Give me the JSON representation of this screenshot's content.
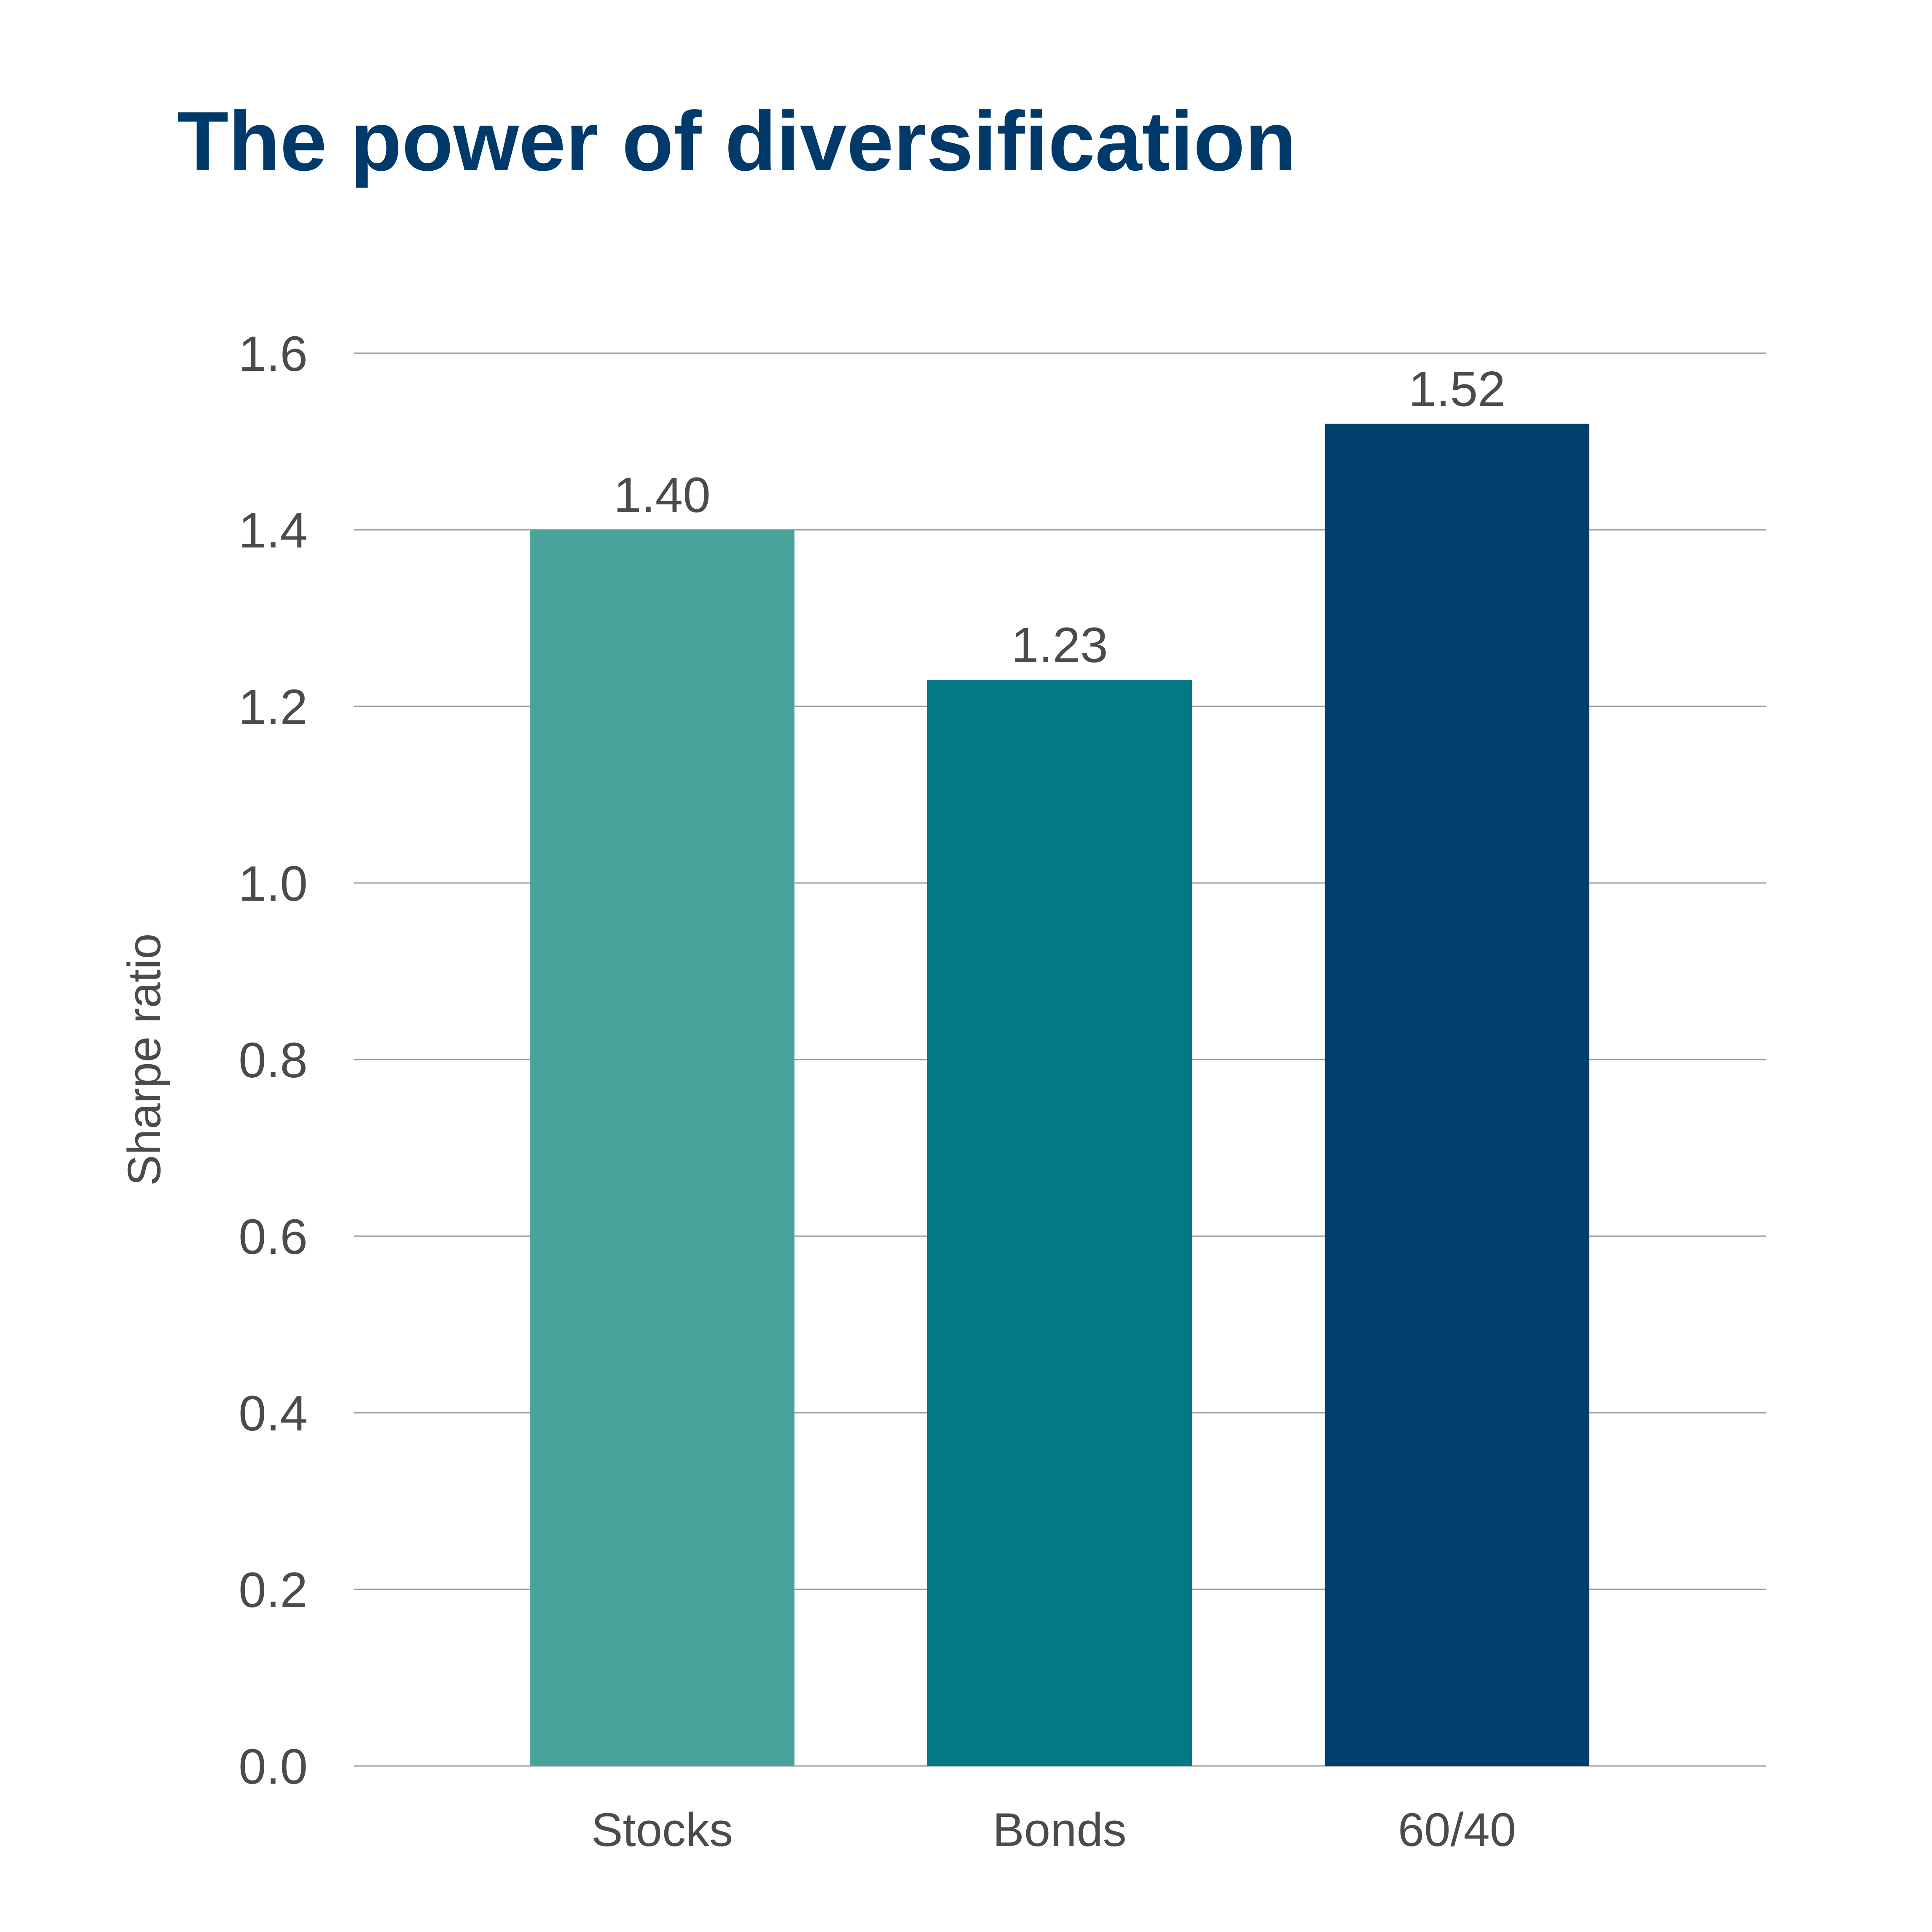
{
  "chart_data": {
    "type": "bar",
    "title": "The power of diversification",
    "xlabel": "",
    "ylabel": "Sharpe ratio",
    "categories": [
      "Stocks",
      "Bonds",
      "60/40"
    ],
    "values": [
      1.4,
      1.23,
      1.52
    ],
    "value_labels": [
      "1.40",
      "1.23",
      "1.52"
    ],
    "ylim": [
      0,
      1.6
    ],
    "yticks": [
      0,
      0.2,
      0.4,
      0.6,
      0.8,
      1.0,
      1.2,
      1.4,
      1.6
    ],
    "ytick_labels": [
      "0.0",
      "0.2",
      "0.4",
      "0.6",
      "0.8",
      "1.0",
      "1.2",
      "1.4",
      "1.6"
    ],
    "bar_colors": [
      "#48a39b",
      "#037a83",
      "#003e6b"
    ],
    "title_color": "#003a6a",
    "grid": true,
    "legend": "none"
  }
}
